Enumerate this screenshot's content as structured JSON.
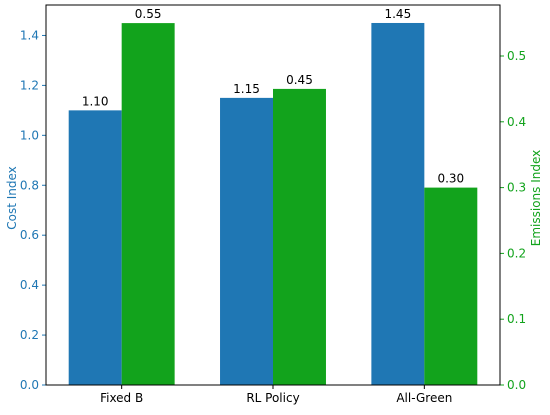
{
  "chart_data": {
    "type": "bar",
    "categories": [
      "Fixed B",
      "RL Policy",
      "All-Green"
    ],
    "series": [
      {
        "name": "Cost Index",
        "axis": "left",
        "color": "#1f77b4",
        "values": [
          1.1,
          1.15,
          1.45
        ],
        "labels": [
          "1.10",
          "1.15",
          "1.45"
        ]
      },
      {
        "name": "Emissions Index",
        "axis": "right",
        "color": "#12a31c",
        "values": [
          0.55,
          0.45,
          0.3
        ],
        "labels": [
          "0.55",
          "0.45",
          "0.30"
        ]
      }
    ],
    "title": "",
    "xlabel": "",
    "ylabel_left": "Cost Index",
    "ylabel_right": "Emissions Index",
    "ylim_left": [
      0,
      1.522
    ],
    "ylim_right": [
      0,
      0.5775
    ],
    "yticks_left": [
      "0.0",
      "0.2",
      "0.4",
      "0.6",
      "0.8",
      "1.0",
      "1.2",
      "1.4"
    ],
    "yticks_right": [
      "0.0",
      "0.1",
      "0.2",
      "0.3",
      "0.4",
      "0.5"
    ],
    "left_axis_color": "#1f77b4",
    "right_axis_color": "#12a31c",
    "grid": false,
    "legend": "none"
  }
}
